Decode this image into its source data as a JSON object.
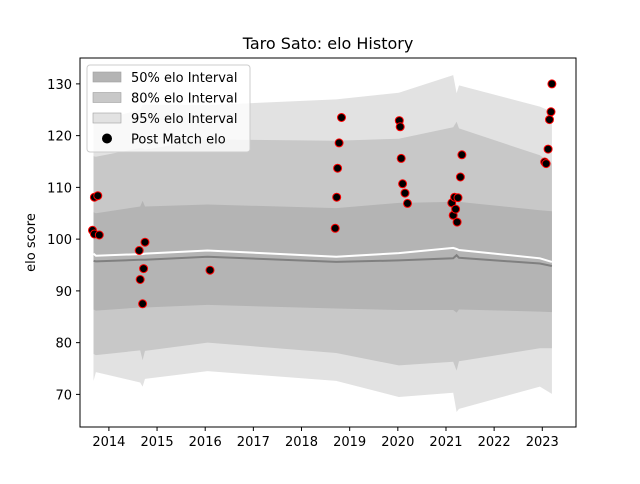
{
  "chart_data": {
    "type": "scatter",
    "title": "Taro Sato: elo History",
    "xlabel": "",
    "ylabel": "elo score",
    "xlim": [
      2013.4,
      2023.7
    ],
    "ylim": [
      63.7,
      135.0
    ],
    "x_ticks": [
      2014,
      2015,
      2016,
      2017,
      2018,
      2019,
      2020,
      2021,
      2022,
      2023
    ],
    "y_ticks": [
      70,
      80,
      90,
      100,
      110,
      120,
      130
    ],
    "grid": false,
    "legend": {
      "position": "top-left",
      "entries": [
        "50% elo Interval",
        "80% elo Interval",
        "95% elo Interval",
        "Post Match elo"
      ]
    },
    "colors": {
      "band50": "#b4b4b4",
      "band80": "#c8c8c8",
      "band95": "#e2e2e2",
      "mean_line": "#ffffff",
      "center_line": "#808080",
      "point_fill": "#000000",
      "point_edge": "#ff0000"
    },
    "interval_x": [
      2013.68,
      2013.73,
      2014.65,
      2014.7,
      2014.75,
      2016.05,
      2018.72,
      2020.02,
      2021.15,
      2021.22,
      2021.27,
      2022.95,
      2023.2
    ],
    "mean_line": [
      97.2,
      96.8,
      97.1,
      97.1,
      97.2,
      97.8,
      96.6,
      97.3,
      98.3,
      98.1,
      97.9,
      96.3,
      95.6
    ],
    "center_line": [
      95.8,
      95.7,
      96.0,
      96.0,
      96.0,
      96.6,
      95.6,
      95.9,
      96.3,
      96.9,
      96.4,
      95.3,
      94.8
    ],
    "band50": {
      "lower": [
        86.4,
        86.2,
        86.8,
        86.6,
        86.8,
        87.3,
        86.6,
        86.3,
        86.3,
        85.8,
        86.4,
        86.0,
        85.9
      ],
      "upper": [
        105.2,
        105.0,
        106.3,
        107.4,
        106.3,
        106.7,
        106.0,
        107.0,
        107.2,
        106.8,
        107.2,
        105.6,
        105.4
      ]
    },
    "band80": {
      "lower": [
        77.8,
        77.6,
        78.5,
        76.6,
        78.4,
        80.0,
        78.0,
        75.6,
        76.3,
        74.6,
        76.4,
        78.9,
        78.9
      ],
      "upper": [
        116.0,
        115.9,
        117.6,
        117.6,
        117.3,
        119.3,
        119.0,
        119.4,
        121.6,
        122.7,
        121.4,
        116.2,
        114.6
      ]
    },
    "band95": {
      "lower": [
        72.6,
        74.3,
        72.3,
        71.5,
        73.0,
        74.5,
        72.6,
        69.5,
        70.3,
        66.6,
        67.2,
        71.5,
        70.1
      ],
      "upper": [
        123.0,
        122.8,
        125.0,
        126.0,
        126.0,
        125.9,
        127.0,
        128.3,
        131.7,
        128.2,
        129.7,
        125.6,
        124.6
      ]
    },
    "points": [
      {
        "x": 2013.66,
        "y": 101.7
      },
      {
        "x": 2013.7,
        "y": 101.0
      },
      {
        "x": 2013.7,
        "y": 108.1
      },
      {
        "x": 2013.77,
        "y": 108.4
      },
      {
        "x": 2013.8,
        "y": 100.8
      },
      {
        "x": 2014.63,
        "y": 97.8
      },
      {
        "x": 2014.65,
        "y": 92.2
      },
      {
        "x": 2014.7,
        "y": 87.5
      },
      {
        "x": 2014.72,
        "y": 94.3
      },
      {
        "x": 2014.75,
        "y": 99.4
      },
      {
        "x": 2016.1,
        "y": 94.0
      },
      {
        "x": 2018.7,
        "y": 102.1
      },
      {
        "x": 2018.73,
        "y": 108.1
      },
      {
        "x": 2018.75,
        "y": 113.7
      },
      {
        "x": 2018.78,
        "y": 118.6
      },
      {
        "x": 2018.83,
        "y": 123.5
      },
      {
        "x": 2020.03,
        "y": 122.9
      },
      {
        "x": 2020.05,
        "y": 121.7
      },
      {
        "x": 2020.07,
        "y": 115.6
      },
      {
        "x": 2020.1,
        "y": 110.7
      },
      {
        "x": 2020.15,
        "y": 108.9
      },
      {
        "x": 2020.2,
        "y": 106.9
      },
      {
        "x": 2021.12,
        "y": 107.0
      },
      {
        "x": 2021.15,
        "y": 104.6
      },
      {
        "x": 2021.18,
        "y": 108.1
      },
      {
        "x": 2021.2,
        "y": 105.8
      },
      {
        "x": 2021.23,
        "y": 103.3
      },
      {
        "x": 2021.25,
        "y": 108.0
      },
      {
        "x": 2021.3,
        "y": 112.0
      },
      {
        "x": 2021.33,
        "y": 116.3
      },
      {
        "x": 2023.05,
        "y": 114.9
      },
      {
        "x": 2023.08,
        "y": 114.6
      },
      {
        "x": 2023.12,
        "y": 117.4
      },
      {
        "x": 2023.15,
        "y": 123.1
      },
      {
        "x": 2023.18,
        "y": 124.6
      },
      {
        "x": 2023.2,
        "y": 130.0
      }
    ]
  }
}
